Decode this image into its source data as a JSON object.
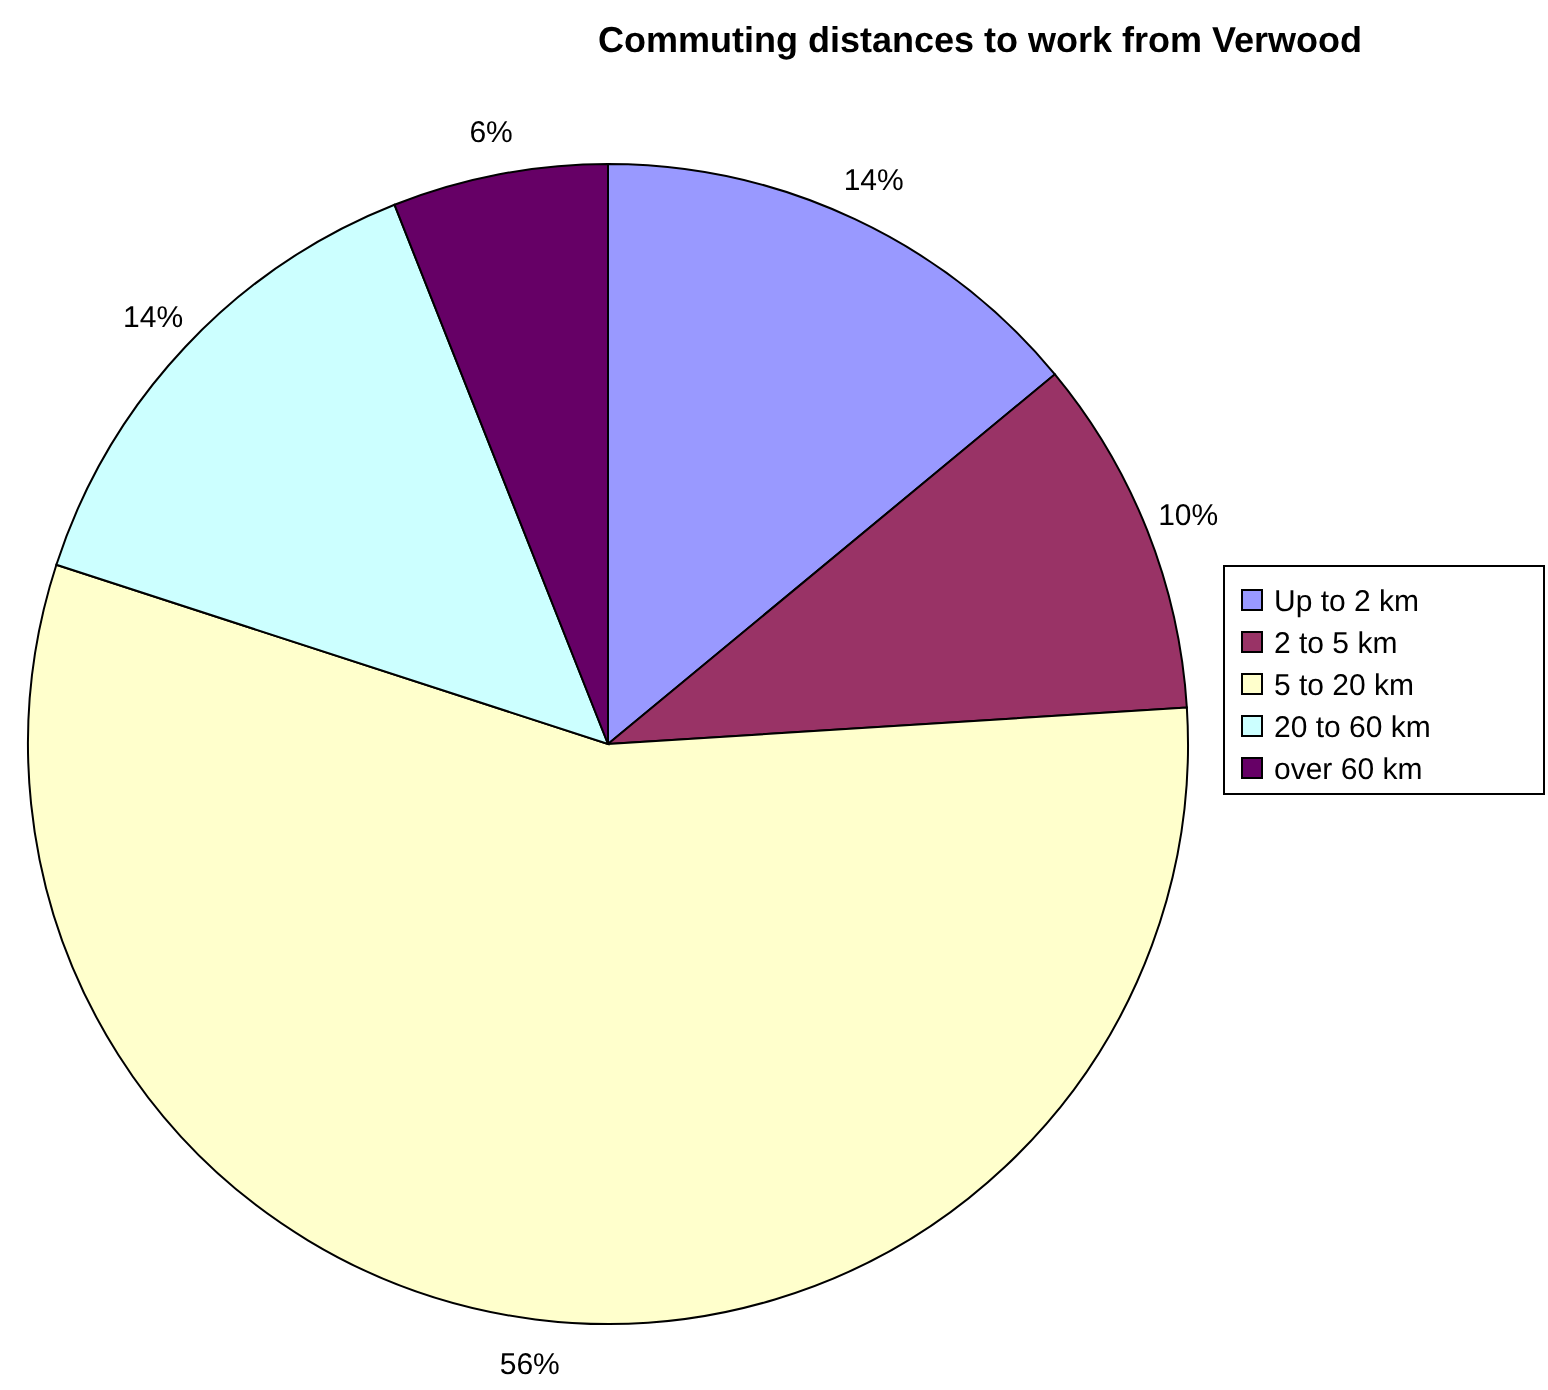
{
  "chart_data": {
    "type": "pie",
    "title": "Commuting distances to work from Verwood",
    "categories": [
      "Up to 2 km",
      "2 to 5 km",
      "5 to 20 km",
      "20 to 60 km",
      "over 60 km"
    ],
    "values": [
      14,
      10,
      56,
      14,
      6
    ],
    "colors": [
      "#9999ff",
      "#993366",
      "#ffffcc",
      "#ccffff",
      "#660066"
    ],
    "value_labels": [
      "14%",
      "10%",
      "56%",
      "14%",
      "6%"
    ],
    "legend": "right"
  }
}
